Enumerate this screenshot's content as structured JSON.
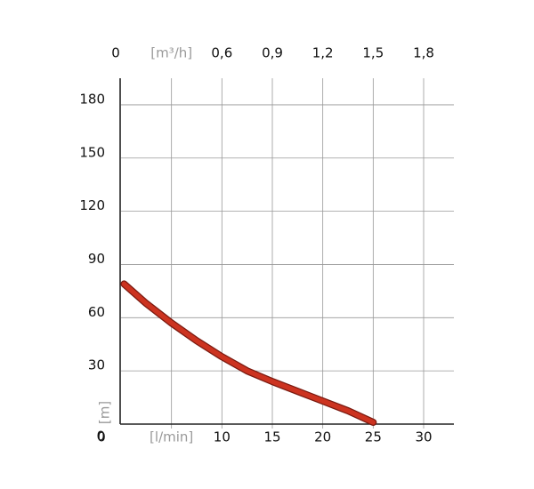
{
  "chart_data": {
    "type": "line",
    "x": [
      0.3,
      2.5,
      5,
      7.5,
      10,
      12.5,
      15,
      17.5,
      20,
      22.5,
      25
    ],
    "series": [
      {
        "color": "#cc3320",
        "values": [
          79,
          68,
          57,
          47,
          38,
          30,
          24,
          18.5,
          13,
          7.5,
          1
        ]
      }
    ],
    "xlim": [
      0,
      33
    ],
    "ylim": [
      0,
      195
    ],
    "x2lim": [
      0,
      1.98
    ],
    "xticks": [
      0,
      {
        "value": 5,
        "label": "[l/min]"
      },
      10,
      15,
      20,
      25,
      30
    ],
    "x2ticks": [
      0,
      {
        "value": 0.3,
        "label": "[m³/h]"
      },
      {
        "value": 0.6,
        "label": "0,6"
      },
      {
        "value": 0.9,
        "label": "0,9"
      },
      {
        "value": 1.2,
        "label": "1,2"
      },
      {
        "value": 1.5,
        "label": "1,5"
      },
      {
        "value": 1.8,
        "label": "1,8"
      }
    ],
    "yticks": [
      0,
      30,
      60,
      90,
      120,
      150,
      180
    ],
    "ylabel": "[m]",
    "grid": true
  }
}
